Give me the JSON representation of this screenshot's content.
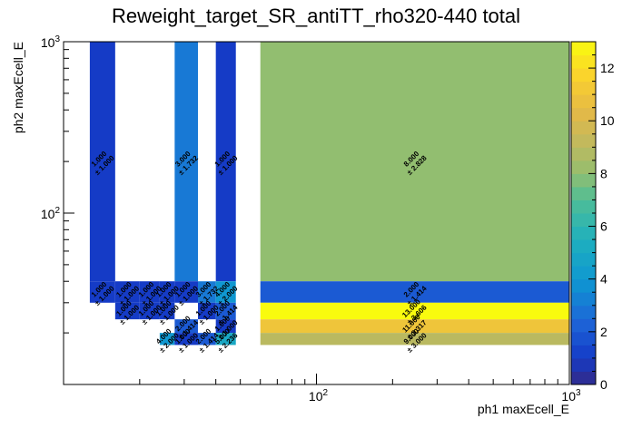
{
  "chart_data": {
    "type": "heatmap",
    "title": "Reweight_target_SR_antiTT_rho320-440 total",
    "xlabel": "ph1 maxEcell_E",
    "ylabel": "ph2 maxEcell_E",
    "x_scale": "log",
    "y_scale": "log",
    "xlim": [
      10,
      1000
    ],
    "ylim": [
      10,
      1000
    ],
    "x_ticks": [
      {
        "value": 100,
        "label": "10^2"
      },
      {
        "value": 1000,
        "label": "10^3"
      }
    ],
    "y_ticks": [
      {
        "value": 100,
        "label": "10^2"
      },
      {
        "value": 1000,
        "label": "10^3"
      }
    ],
    "colorbar": {
      "min": 0,
      "max": 13,
      "ticks": [
        0,
        2,
        4,
        6,
        8,
        10,
        12
      ]
    },
    "x_edges": [
      12.7,
      16,
      20,
      24,
      27.5,
      34,
      40,
      48,
      60,
      1000
    ],
    "y_edges": [
      10.5,
      12.5,
      14.5,
      17,
      20,
      24,
      30,
      40,
      1000
    ],
    "cells": [
      {
        "xi": 0,
        "yi": 7,
        "value": 1.0,
        "label": "1.000",
        "error": "± 1.000"
      },
      {
        "xi": 4,
        "yi": 7,
        "value": 3.0,
        "label": "3.000",
        "error": "± 1.732"
      },
      {
        "xi": 6,
        "yi": 7,
        "value": 1.0,
        "label": "1.000",
        "error": "± 1.000"
      },
      {
        "xi": 8,
        "yi": 7,
        "value": 8.0,
        "label": "8.000",
        "error": "± 2.828"
      },
      {
        "xi": 0,
        "yi": 6,
        "value": 1.0,
        "label": "1.000",
        "error": "± 1.000"
      },
      {
        "xi": 1,
        "yi": 6,
        "value": 1.0,
        "label": "1.000",
        "error": "± 1.000"
      },
      {
        "xi": 2,
        "yi": 6,
        "value": 1.0,
        "label": "1.000",
        "error": "± 1.000"
      },
      {
        "xi": 3,
        "yi": 6,
        "value": 1.0,
        "label": "1.000",
        "error": "± 1.000"
      },
      {
        "xi": 4,
        "yi": 6,
        "value": 1.0,
        "label": "1.000",
        "error": "± 1.000"
      },
      {
        "xi": 5,
        "yi": 6,
        "value": 3.0,
        "label": "3.000",
        "error": "± 1.732"
      },
      {
        "xi": 6,
        "yi": 6,
        "value": 4.0,
        "label": "4.000",
        "error": "± 2.000"
      },
      {
        "xi": 8,
        "yi": 6,
        "value": 2.0,
        "label": "2.000",
        "error": "± 1.414"
      },
      {
        "xi": 1,
        "yi": 5,
        "value": 1.0,
        "label": "1.000",
        "error": "± 1.000"
      },
      {
        "xi": 2,
        "yi": 5,
        "value": 1.0,
        "label": "1.000",
        "error": "± 1.000"
      },
      {
        "xi": 3,
        "yi": 5,
        "value": 1.0,
        "label": "1.000",
        "error": "± 1.000"
      },
      {
        "xi": 5,
        "yi": 5,
        "value": 1.0,
        "label": "1.000",
        "error": "± 1.000"
      },
      {
        "xi": 6,
        "yi": 5,
        "value": 2.0,
        "label": "2.000",
        "error": "± 1.414"
      },
      {
        "xi": 8,
        "yi": 5,
        "value": 13.0,
        "label": "13.000",
        "error": "± 3.606"
      },
      {
        "xi": 4,
        "yi": 4,
        "value": 2.0,
        "label": "2.000",
        "error": "± 1.414"
      },
      {
        "xi": 6,
        "yi": 4,
        "value": 1.0,
        "label": "1.000",
        "error": "± 1.000"
      },
      {
        "xi": 8,
        "yi": 4,
        "value": 11.0,
        "label": "11.000",
        "error": "± 3.317"
      },
      {
        "xi": 3,
        "yi": 3,
        "value": 4.0,
        "label": "4.000",
        "error": "± 2.000"
      },
      {
        "xi": 4,
        "yi": 3,
        "value": 1.0,
        "label": "1.000",
        "error": "± 1.000"
      },
      {
        "xi": 5,
        "yi": 3,
        "value": 2.0,
        "label": "2.000",
        "error": "± 1.414"
      },
      {
        "xi": 6,
        "yi": 3,
        "value": 5.0,
        "label": "5.000",
        "error": "± 2.236"
      },
      {
        "xi": 8,
        "yi": 3,
        "value": 9.0,
        "label": "9.000",
        "error": "± 3.000"
      }
    ],
    "grid": false,
    "legend": "none"
  }
}
